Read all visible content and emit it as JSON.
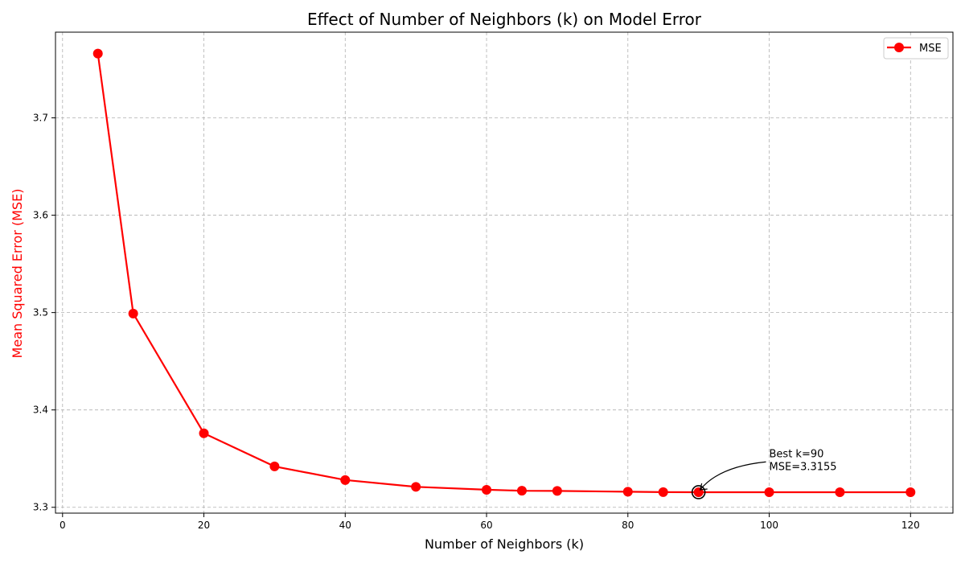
{
  "chart_data": {
    "type": "line",
    "title": "Effect of Number of Neighbors (k) on Model Error",
    "xlabel": "Number of Neighbors (k)",
    "ylabel": "Mean Squared Error (MSE)",
    "xlim": [
      -1,
      126
    ],
    "ylim": [
      3.294,
      3.788
    ],
    "xticks": [
      0,
      20,
      40,
      60,
      80,
      100,
      120
    ],
    "yticks": [
      3.3,
      3.4,
      3.5,
      3.6,
      3.7
    ],
    "ytick_labels": [
      "3.3",
      "3.4",
      "3.5",
      "3.6",
      "3.7"
    ],
    "grid": true,
    "legend_position": "top-right",
    "series": [
      {
        "name": "MSE",
        "color": "#ff0000",
        "marker": "circle",
        "x": [
          5,
          10,
          20,
          30,
          40,
          50,
          60,
          65,
          70,
          80,
          85,
          90,
          100,
          110,
          120
        ],
        "y": [
          3.766,
          3.499,
          3.376,
          3.342,
          3.328,
          3.321,
          3.318,
          3.317,
          3.3168,
          3.316,
          3.3156,
          3.3155,
          3.3155,
          3.3155,
          3.3155
        ]
      }
    ],
    "annotation": {
      "line1": "Best k=90",
      "line2": "MSE=3.3155",
      "x": 90,
      "y": 3.3155,
      "text_x": 100,
      "text_y": 3.345
    },
    "ylabel_color": "#ff0000"
  }
}
